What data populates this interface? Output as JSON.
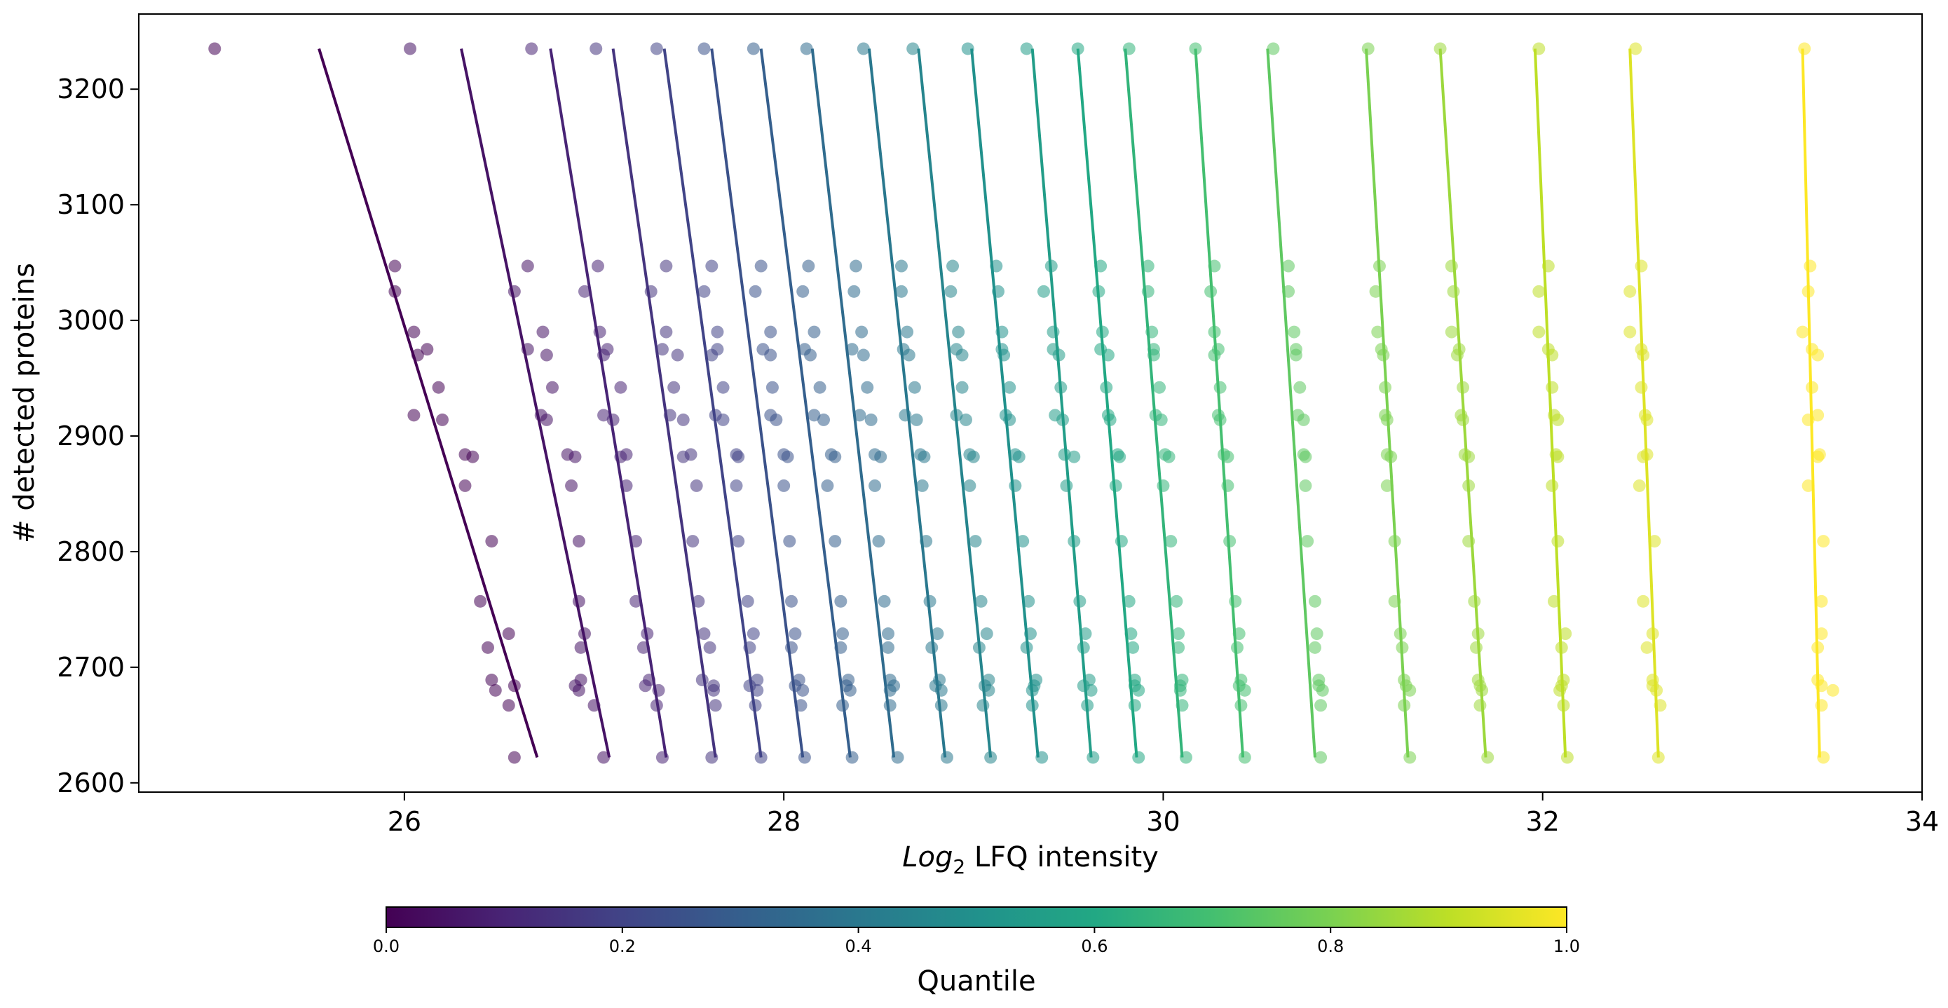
{
  "chart_data": {
    "type": "scatter",
    "title": "",
    "xlabel_prefix": "Log",
    "xlabel_sub": "2",
    "xlabel_suffix": " LFQ intensity",
    "ylabel": "# detected proteins",
    "xlim": [
      24.6,
      34.0
    ],
    "ylim": [
      2592,
      3265
    ],
    "x_ticks": [
      26,
      28,
      30,
      32,
      34
    ],
    "x_tick_labels": [
      "26",
      "28",
      "30",
      "32",
      "34"
    ],
    "y_ticks": [
      2600,
      2700,
      2800,
      2900,
      3000,
      3100,
      3200
    ],
    "y_tick_labels": [
      "2600",
      "2700",
      "2800",
      "2900",
      "3000",
      "3100",
      "3200"
    ],
    "grid": false,
    "legend": "none",
    "colormap": "viridis",
    "colorbar": {
      "label": "Quantile",
      "range": [
        0.0,
        1.0
      ],
      "ticks": [
        0.0,
        0.2,
        0.4,
        0.6,
        0.8,
        1.0
      ],
      "tick_labels": [
        "0.0",
        "0.2",
        "0.4",
        "0.6",
        "0.8",
        "1.0"
      ],
      "placement": "bottom"
    },
    "samples_y": [
      3235,
      3047,
      3025,
      2990,
      2975,
      2970,
      2942,
      2918,
      2914,
      2884,
      2882,
      2857,
      2809,
      2757,
      2729,
      2717,
      2689,
      2684,
      2680,
      2667,
      2622
    ],
    "series": [
      {
        "quantile": 0.0,
        "fit": [
          [
            25.55,
            3235
          ],
          [
            26.7,
            2622
          ]
        ],
        "x": [
          25.0,
          25.95,
          25.95,
          26.05,
          26.12,
          26.07,
          26.18,
          26.05,
          26.2,
          26.32,
          26.36,
          26.32,
          26.46,
          26.4,
          26.55,
          26.44,
          26.46,
          26.58,
          26.48,
          26.55,
          26.58
        ]
      },
      {
        "quantile": 0.05,
        "fit": [
          [
            26.3,
            3235
          ],
          [
            27.08,
            2622
          ]
        ],
        "x": [
          26.03,
          26.65,
          26.58,
          26.73,
          26.65,
          26.75,
          26.78,
          26.72,
          26.75,
          26.86,
          26.9,
          26.88,
          26.92,
          26.92,
          26.95,
          26.93,
          26.93,
          26.9,
          26.92,
          27.0,
          27.05
        ]
      },
      {
        "quantile": 0.1,
        "fit": [
          [
            26.77,
            3235
          ],
          [
            27.38,
            2622
          ]
        ],
        "x": [
          26.67,
          27.02,
          26.95,
          27.03,
          27.07,
          27.05,
          27.14,
          27.05,
          27.1,
          27.17,
          27.14,
          27.17,
          27.22,
          27.22,
          27.28,
          27.26,
          27.29,
          27.27,
          27.34,
          27.33,
          27.36
        ]
      },
      {
        "quantile": 0.15,
        "fit": [
          [
            27.1,
            3235
          ],
          [
            27.64,
            2622
          ]
        ],
        "x": [
          27.01,
          27.38,
          27.3,
          27.38,
          27.36,
          27.44,
          27.42,
          27.4,
          27.47,
          27.51,
          27.47,
          27.54,
          27.52,
          27.55,
          27.58,
          27.61,
          27.57,
          27.63,
          27.63,
          27.64,
          27.62
        ]
      },
      {
        "quantile": 0.2,
        "fit": [
          [
            27.37,
            3235
          ],
          [
            27.88,
            2622
          ]
        ],
        "x": [
          27.33,
          27.62,
          27.58,
          27.65,
          27.65,
          27.62,
          27.68,
          27.64,
          27.68,
          27.75,
          27.76,
          27.75,
          27.76,
          27.81,
          27.84,
          27.82,
          27.86,
          27.82,
          27.86,
          27.85,
          27.88
        ]
      },
      {
        "quantile": 0.25,
        "fit": [
          [
            27.62,
            3235
          ],
          [
            28.1,
            2622
          ]
        ],
        "x": [
          27.58,
          27.88,
          27.85,
          27.93,
          27.89,
          27.93,
          27.94,
          27.93,
          27.96,
          28.0,
          28.02,
          28.0,
          28.03,
          28.04,
          28.06,
          28.04,
          28.08,
          28.06,
          28.1,
          28.09,
          28.11
        ]
      },
      {
        "quantile": 0.3,
        "fit": [
          [
            27.88,
            3235
          ],
          [
            28.35,
            2622
          ]
        ],
        "x": [
          27.84,
          28.13,
          28.1,
          28.16,
          28.11,
          28.14,
          28.19,
          28.16,
          28.21,
          28.25,
          28.27,
          28.23,
          28.27,
          28.3,
          28.31,
          28.3,
          28.34,
          28.33,
          28.35,
          28.31,
          28.36
        ]
      },
      {
        "quantile": 0.35,
        "fit": [
          [
            28.15,
            3235
          ],
          [
            28.58,
            2622
          ]
        ],
        "x": [
          28.12,
          28.38,
          28.37,
          28.41,
          28.36,
          28.42,
          28.44,
          28.4,
          28.46,
          28.48,
          28.51,
          28.48,
          28.5,
          28.53,
          28.55,
          28.55,
          28.56,
          28.58,
          28.56,
          28.56,
          28.6
        ]
      },
      {
        "quantile": 0.4,
        "fit": [
          [
            28.45,
            3235
          ],
          [
            28.85,
            2622
          ]
        ],
        "x": [
          28.42,
          28.62,
          28.62,
          28.65,
          28.63,
          28.66,
          28.69,
          28.64,
          28.7,
          28.72,
          28.74,
          28.73,
          28.75,
          28.77,
          28.81,
          28.78,
          28.82,
          28.8,
          28.83,
          28.83,
          28.86
        ]
      },
      {
        "quantile": 0.45,
        "fit": [
          [
            28.71,
            3235
          ],
          [
            29.09,
            2622
          ]
        ],
        "x": [
          28.68,
          28.89,
          28.88,
          28.92,
          28.91,
          28.94,
          28.94,
          28.91,
          28.96,
          28.98,
          29.0,
          28.98,
          29.01,
          29.04,
          29.07,
          29.03,
          29.08,
          29.06,
          29.08,
          29.05,
          29.09
        ]
      },
      {
        "quantile": 0.5,
        "fit": [
          [
            28.99,
            3235
          ],
          [
            29.34,
            2622
          ]
        ],
        "x": [
          28.97,
          29.12,
          29.13,
          29.15,
          29.15,
          29.16,
          29.19,
          29.17,
          29.19,
          29.22,
          29.24,
          29.22,
          29.26,
          29.29,
          29.3,
          29.28,
          29.33,
          29.32,
          29.31,
          29.31,
          29.36
        ]
      },
      {
        "quantile": 0.55,
        "fit": [
          [
            29.31,
            3235
          ],
          [
            29.62,
            2622
          ]
        ],
        "x": [
          29.28,
          29.41,
          29.37,
          29.42,
          29.42,
          29.45,
          29.46,
          29.43,
          29.47,
          29.48,
          29.53,
          29.49,
          29.53,
          29.56,
          29.59,
          29.58,
          29.61,
          29.58,
          29.62,
          29.6,
          29.63
        ]
      },
      {
        "quantile": 0.6,
        "fit": [
          [
            29.55,
            3235
          ],
          [
            29.86,
            2622
          ]
        ],
        "x": [
          29.55,
          29.67,
          29.66,
          29.68,
          29.67,
          29.71,
          29.7,
          29.71,
          29.72,
          29.76,
          29.77,
          29.75,
          29.78,
          29.82,
          29.83,
          29.84,
          29.85,
          29.85,
          29.87,
          29.85,
          29.87
        ]
      },
      {
        "quantile": 0.65,
        "fit": [
          [
            29.8,
            3235
          ],
          [
            30.1,
            2622
          ]
        ],
        "x": [
          29.82,
          29.92,
          29.92,
          29.94,
          29.95,
          29.95,
          29.98,
          29.96,
          29.99,
          30.01,
          30.03,
          30.0,
          30.04,
          30.07,
          30.08,
          30.08,
          30.1,
          30.09,
          30.09,
          30.1,
          30.12
        ]
      },
      {
        "quantile": 0.7,
        "fit": [
          [
            30.17,
            3235
          ],
          [
            30.42,
            2622
          ]
        ],
        "x": [
          30.17,
          30.27,
          30.25,
          30.27,
          30.29,
          30.27,
          30.3,
          30.29,
          30.3,
          30.32,
          30.34,
          30.34,
          30.35,
          30.38,
          30.4,
          30.39,
          30.41,
          30.4,
          30.43,
          30.41,
          30.43
        ]
      },
      {
        "quantile": 0.75,
        "fit": [
          [
            30.55,
            3235
          ],
          [
            30.8,
            2622
          ]
        ],
        "x": [
          30.58,
          30.66,
          30.66,
          30.69,
          30.7,
          30.7,
          30.72,
          30.71,
          30.74,
          30.74,
          30.75,
          30.75,
          30.76,
          30.8,
          30.81,
          30.8,
          30.82,
          30.82,
          30.84,
          30.83,
          30.83
        ]
      },
      {
        "quantile": 0.8,
        "fit": [
          [
            31.07,
            3235
          ],
          [
            31.29,
            2622
          ]
        ],
        "x": [
          31.08,
          31.14,
          31.12,
          31.13,
          31.15,
          31.16,
          31.17,
          31.17,
          31.18,
          31.18,
          31.2,
          31.18,
          31.22,
          31.22,
          31.25,
          31.26,
          31.27,
          31.28,
          31.3,
          31.27,
          31.3
        ]
      },
      {
        "quantile": 0.85,
        "fit": [
          [
            31.46,
            3235
          ],
          [
            31.7,
            2622
          ]
        ],
        "x": [
          31.46,
          31.52,
          31.53,
          31.52,
          31.56,
          31.55,
          31.58,
          31.57,
          31.58,
          31.59,
          31.61,
          31.61,
          31.61,
          31.64,
          31.66,
          31.65,
          31.66,
          31.67,
          31.68,
          31.67,
          31.71
        ]
      },
      {
        "quantile": 0.9,
        "fit": [
          [
            31.96,
            3235
          ],
          [
            32.12,
            2622
          ]
        ],
        "x": [
          31.98,
          32.03,
          31.98,
          31.98,
          32.03,
          32.05,
          32.05,
          32.06,
          32.08,
          32.07,
          32.08,
          32.05,
          32.08,
          32.06,
          32.12,
          32.1,
          32.11,
          32.1,
          32.09,
          32.11,
          32.13
        ]
      },
      {
        "quantile": 0.95,
        "fit": [
          [
            32.46,
            3235
          ],
          [
            32.61,
            2622
          ]
        ],
        "x": [
          32.49,
          32.52,
          32.46,
          32.46,
          32.52,
          32.53,
          32.52,
          32.54,
          32.55,
          32.55,
          32.53,
          32.51,
          32.59,
          32.53,
          32.58,
          32.55,
          32.58,
          32.58,
          32.6,
          32.62,
          32.61
        ]
      },
      {
        "quantile": 1.0,
        "fit": [
          [
            33.37,
            3235
          ],
          [
            33.46,
            2622
          ]
        ],
        "x": [
          33.38,
          33.41,
          33.4,
          33.37,
          33.42,
          33.45,
          33.42,
          33.45,
          33.4,
          33.46,
          33.45,
          33.4,
          33.48,
          33.47,
          33.47,
          33.45,
          33.45,
          33.47,
          33.53,
          33.47,
          33.48
        ]
      }
    ]
  }
}
